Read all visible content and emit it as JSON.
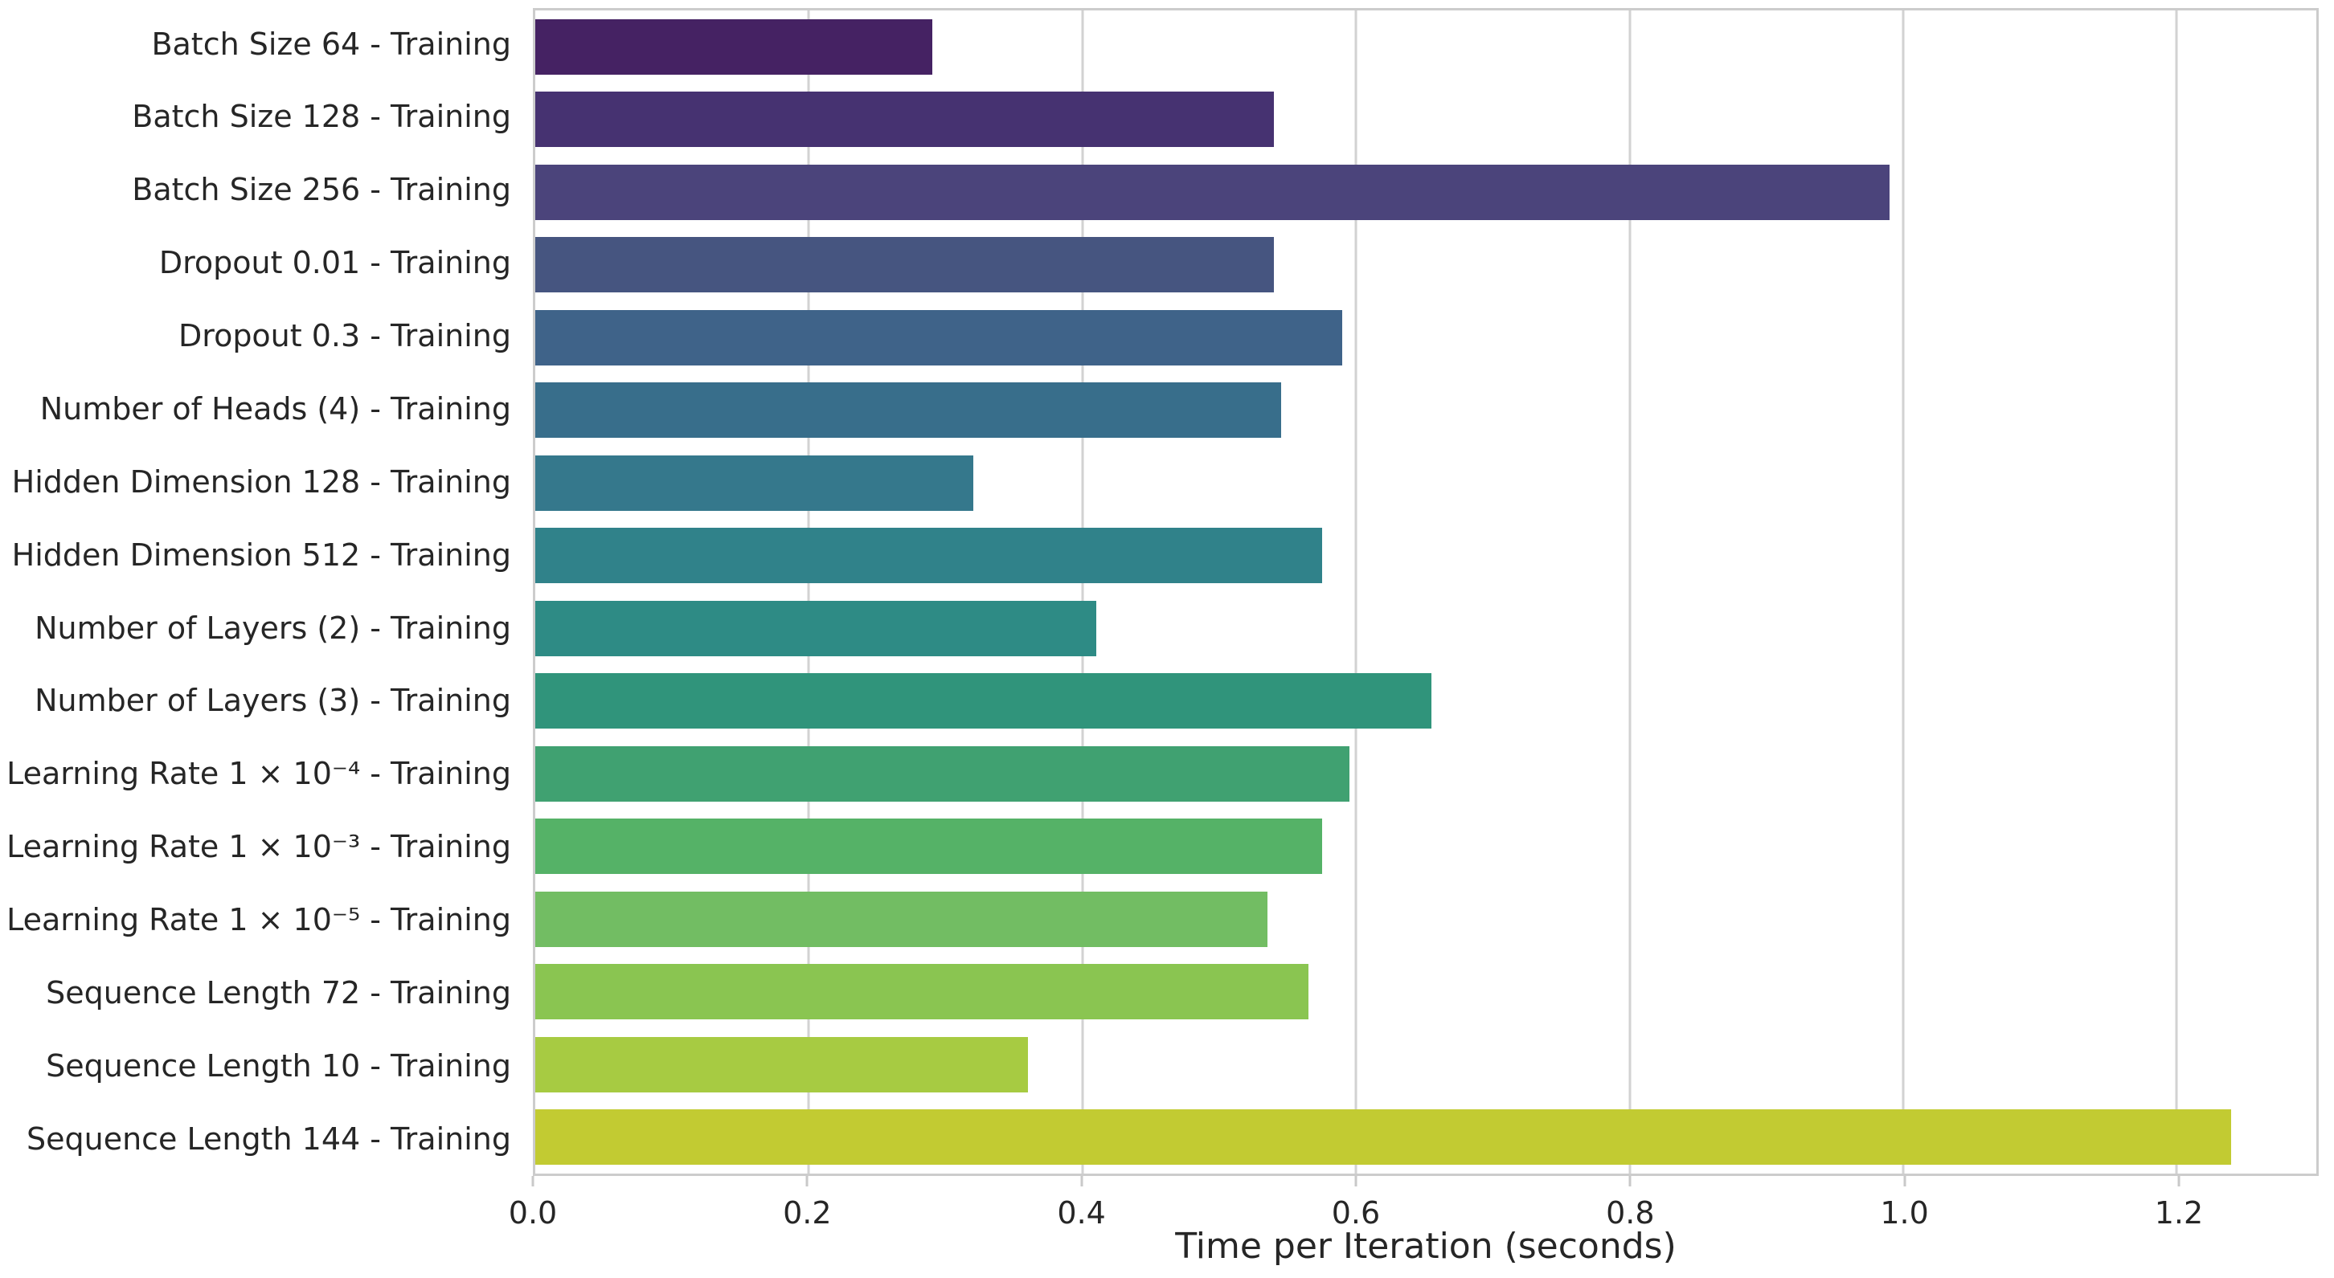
{
  "chart_data": {
    "type": "bar",
    "orientation": "horizontal",
    "title": "",
    "xlabel": "Time per Iteration (seconds)",
    "ylabel": "",
    "xlim": [
      0,
      1.302
    ],
    "grid": "vertical",
    "legend": "none",
    "palette": "viridis (desaturated)",
    "x_ticks": [
      0.0,
      0.2,
      0.4,
      0.6,
      0.8,
      1.0,
      1.2
    ],
    "x_tick_labels": [
      "0.0",
      "0.2",
      "0.4",
      "0.6",
      "0.8",
      "1.0",
      "1.2"
    ],
    "categories": [
      "Batch Size 64 - Training",
      "Batch Size 128 - Training",
      "Batch Size 256 - Training",
      "Dropout 0.01 - Training",
      "Dropout 0.3 - Training",
      "Number of Heads (4) - Training",
      "Hidden Dimension 128 - Training",
      "Hidden Dimension 512 - Training",
      "Number of Layers (2) - Training",
      "Number of Layers (3) - Training",
      "Learning Rate 1 × 10⁻⁴ - Training",
      "Learning Rate 1 × 10⁻³ - Training",
      "Learning Rate 1 × 10⁻⁵ - Training",
      "Sequence Length 72 - Training",
      "Sequence Length 10 - Training",
      "Sequence Length 144 - Training"
    ],
    "values": [
      0.29,
      0.54,
      0.99,
      0.54,
      0.59,
      0.545,
      0.32,
      0.575,
      0.41,
      0.655,
      0.595,
      0.575,
      0.535,
      0.565,
      0.36,
      1.24
    ],
    "colors": [
      "#452263",
      "#463271",
      "#4b447b",
      "#465580",
      "#3f6389",
      "#386e8b",
      "#35788c",
      "#30828a",
      "#2e8b85",
      "#30947b",
      "#40a171",
      "#55b267",
      "#72bd63",
      "#8ac551",
      "#a7cb42",
      "#c2cb32"
    ],
    "grid_color": "#d2d2d2",
    "spine_color": "#cccccc",
    "text_color": "#262626"
  }
}
